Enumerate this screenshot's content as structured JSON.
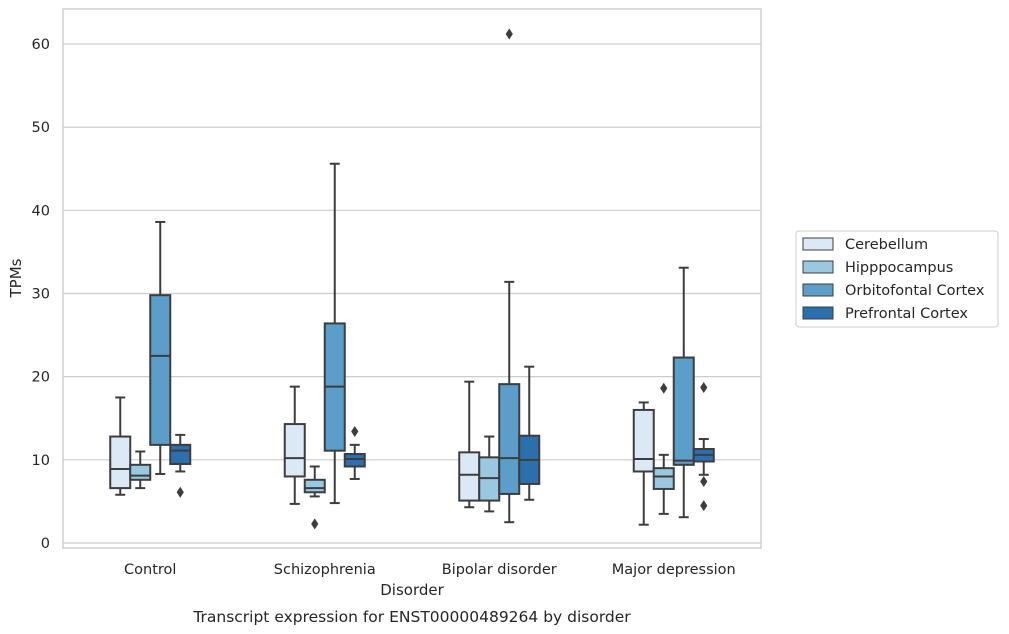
{
  "chart_data": {
    "type": "box",
    "caption": "Transcript expression for ENST00000489264 by disorder",
    "xlabel": "Disorder",
    "ylabel": "TPMs",
    "ylim": [
      -0.3,
      64
    ],
    "yticks": [
      0,
      10,
      20,
      30,
      40,
      50,
      60
    ],
    "grid": true,
    "legend_position": "right",
    "categories": [
      "Control",
      "Schizophrenia",
      "Bipolar disorder",
      "Major depression"
    ],
    "series": [
      {
        "name": "Cerebellum",
        "color": "#dbe9f6",
        "boxes": [
          {
            "whislo": 5.8,
            "q1": 6.6,
            "med": 8.9,
            "q3": 12.8,
            "whishi": 17.5,
            "fliers": []
          },
          {
            "whislo": 4.7,
            "q1": 8.0,
            "med": 10.2,
            "q3": 14.3,
            "whishi": 18.8,
            "fliers": []
          },
          {
            "whislo": 4.3,
            "q1": 5.1,
            "med": 8.2,
            "q3": 10.9,
            "whishi": 19.4,
            "fliers": []
          },
          {
            "whislo": 2.2,
            "q1": 8.6,
            "med": 10.1,
            "q3": 16.0,
            "whishi": 16.9,
            "fliers": []
          }
        ]
      },
      {
        "name": "Hipppocampus",
        "color": "#9ac8e0",
        "boxes": [
          {
            "whislo": 6.6,
            "q1": 7.6,
            "med": 8.1,
            "q3": 9.4,
            "whishi": 11.0,
            "fliers": []
          },
          {
            "whislo": 5.6,
            "q1": 6.1,
            "med": 6.6,
            "q3": 7.6,
            "whishi": 9.2,
            "fliers": [
              2.3
            ]
          },
          {
            "whislo": 3.8,
            "q1": 5.1,
            "med": 7.8,
            "q3": 10.3,
            "whishi": 12.8,
            "fliers": []
          },
          {
            "whislo": 3.5,
            "q1": 6.5,
            "med": 8.0,
            "q3": 9.0,
            "whishi": 10.6,
            "fliers": [
              18.6
            ]
          }
        ]
      },
      {
        "name": "Orbitofontal Cortex",
        "color": "#5a9ec9",
        "boxes": [
          {
            "whislo": 8.3,
            "q1": 11.8,
            "med": 22.5,
            "q3": 29.8,
            "whishi": 38.6,
            "fliers": []
          },
          {
            "whislo": 4.8,
            "q1": 11.1,
            "med": 18.8,
            "q3": 26.4,
            "whishi": 45.6,
            "fliers": []
          },
          {
            "whislo": 2.5,
            "q1": 5.9,
            "med": 10.2,
            "q3": 19.1,
            "whishi": 31.4,
            "fliers": [
              61.2
            ]
          },
          {
            "whislo": 3.1,
            "q1": 9.4,
            "med": 9.9,
            "q3": 22.3,
            "whishi": 33.1,
            "fliers": []
          }
        ]
      },
      {
        "name": "Prefrontal Cortex",
        "color": "#2c6fae",
        "boxes": [
          {
            "whislo": 8.6,
            "q1": 9.5,
            "med": 11.1,
            "q3": 11.8,
            "whishi": 13.0,
            "fliers": [
              6.1
            ]
          },
          {
            "whislo": 7.7,
            "q1": 9.2,
            "med": 10.1,
            "q3": 10.7,
            "whishi": 11.8,
            "fliers": [
              13.4
            ]
          },
          {
            "whislo": 5.2,
            "q1": 7.1,
            "med": 10.0,
            "q3": 12.9,
            "whishi": 21.2,
            "fliers": []
          },
          {
            "whislo": 8.2,
            "q1": 9.8,
            "med": 10.6,
            "q3": 11.3,
            "whishi": 12.5,
            "fliers": [
              18.7,
              7.4,
              4.5
            ]
          }
        ]
      }
    ]
  }
}
